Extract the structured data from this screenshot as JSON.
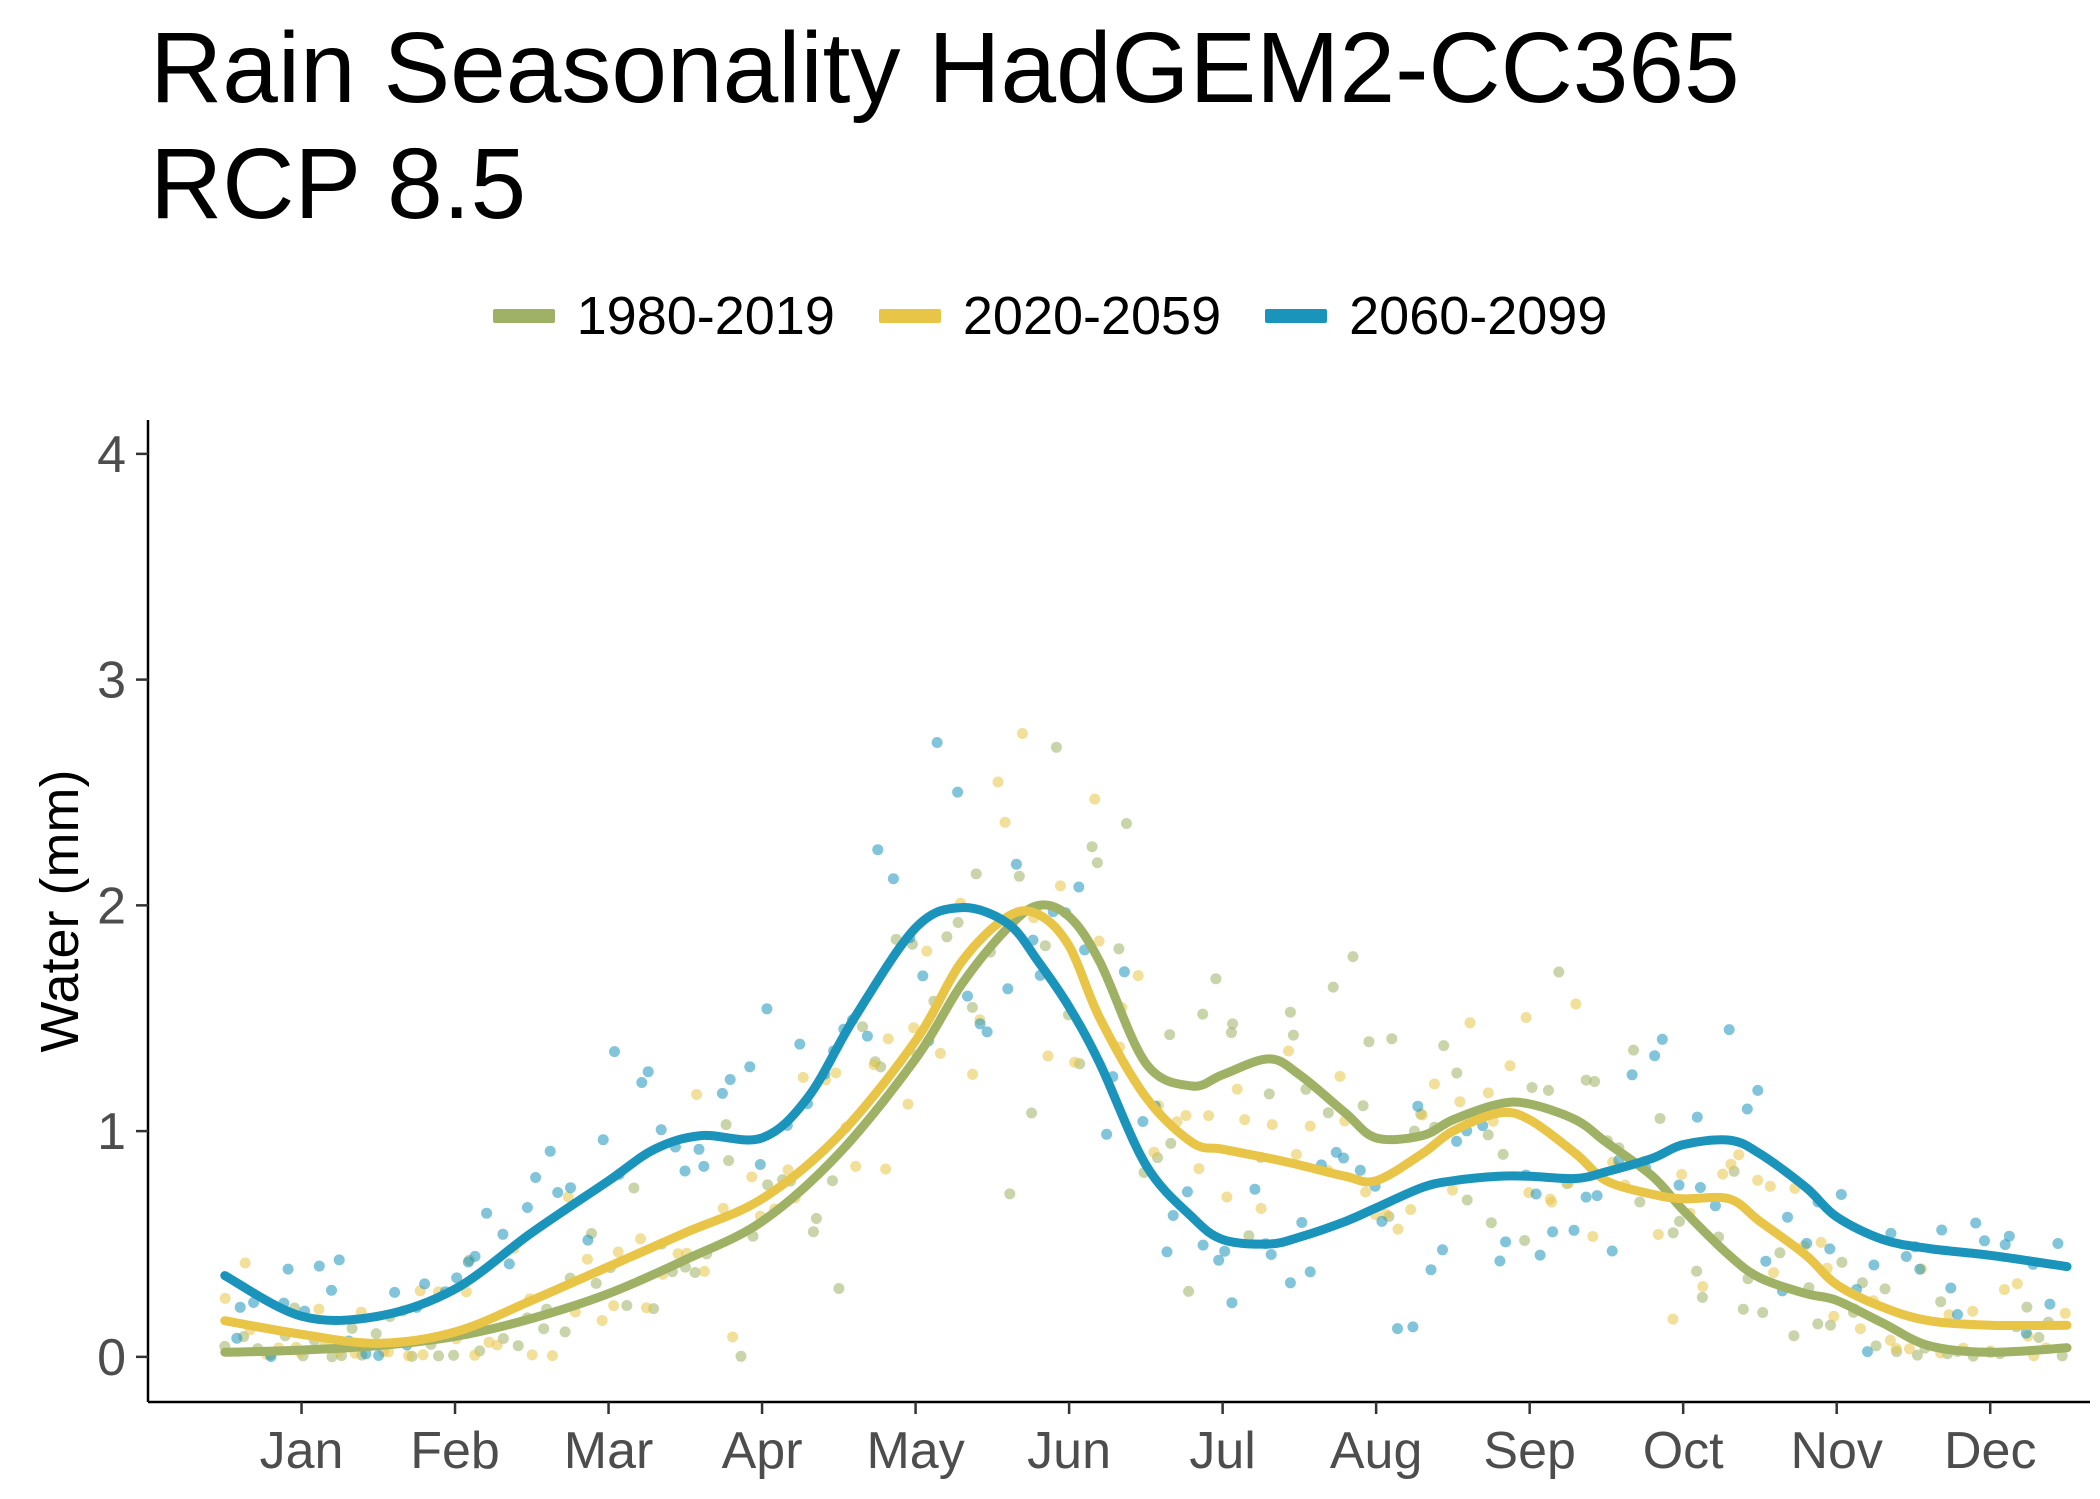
{
  "chart_data": {
    "type": "line",
    "title": [
      "Rain Seasonality HadGEM2-CC365",
      "RCP 8.5"
    ],
    "xlabel": "",
    "ylabel": "Water (mm)",
    "xlim": [
      0,
      12.65
    ],
    "ylim": [
      -0.2,
      4.15
    ],
    "x_ticks": [
      {
        "label": "Jan",
        "x": 1
      },
      {
        "label": "Feb",
        "x": 2
      },
      {
        "label": "Mar",
        "x": 3
      },
      {
        "label": "Apr",
        "x": 4
      },
      {
        "label": "May",
        "x": 5
      },
      {
        "label": "Jun",
        "x": 6
      },
      {
        "label": "Jul",
        "x": 7
      },
      {
        "label": "Aug",
        "x": 8
      },
      {
        "label": "Sep",
        "x": 9
      },
      {
        "label": "Oct",
        "x": 10
      },
      {
        "label": "Nov",
        "x": 11
      },
      {
        "label": "Dec",
        "x": 12
      }
    ],
    "y_ticks": [
      0,
      1,
      2,
      3,
      4
    ],
    "grid": false,
    "legend_position": "top-center",
    "series": [
      {
        "name": "1980-2019",
        "color": "#9fb164",
        "x": [
          0.5,
          1.0,
          1.5,
          2.0,
          2.5,
          3.0,
          3.5,
          4.0,
          4.5,
          5.0,
          5.3,
          5.6,
          5.8,
          6.0,
          6.2,
          6.5,
          6.8,
          7.0,
          7.3,
          7.5,
          7.8,
          8.0,
          8.3,
          8.5,
          8.8,
          9.0,
          9.3,
          9.5,
          9.8,
          10.0,
          10.3,
          10.5,
          10.8,
          11.0,
          11.3,
          11.6,
          12.0,
          12.5
        ],
        "y": [
          0.02,
          0.03,
          0.05,
          0.09,
          0.17,
          0.28,
          0.43,
          0.6,
          0.9,
          1.32,
          1.65,
          1.9,
          2.0,
          1.95,
          1.75,
          1.3,
          1.2,
          1.25,
          1.32,
          1.25,
          1.08,
          0.97,
          0.98,
          1.05,
          1.12,
          1.12,
          1.05,
          0.95,
          0.8,
          0.65,
          0.45,
          0.35,
          0.28,
          0.25,
          0.15,
          0.05,
          0.02,
          0.04
        ]
      },
      {
        "name": "2020-2059",
        "color": "#e8c547",
        "x": [
          0.5,
          1.0,
          1.5,
          2.0,
          2.5,
          3.0,
          3.5,
          4.0,
          4.5,
          5.0,
          5.3,
          5.6,
          5.8,
          6.0,
          6.2,
          6.5,
          6.8,
          7.0,
          7.3,
          7.5,
          7.8,
          8.0,
          8.3,
          8.5,
          8.8,
          9.0,
          9.3,
          9.5,
          9.8,
          10.0,
          10.3,
          10.5,
          10.8,
          11.0,
          11.3,
          11.6,
          12.0,
          12.5
        ],
        "y": [
          0.16,
          0.1,
          0.06,
          0.11,
          0.25,
          0.4,
          0.55,
          0.7,
          0.98,
          1.4,
          1.75,
          1.95,
          1.96,
          1.82,
          1.5,
          1.15,
          0.95,
          0.92,
          0.88,
          0.85,
          0.8,
          0.78,
          0.9,
          1.0,
          1.08,
          1.05,
          0.9,
          0.78,
          0.72,
          0.7,
          0.7,
          0.6,
          0.45,
          0.32,
          0.22,
          0.16,
          0.14,
          0.14
        ]
      },
      {
        "name": "2060-2099",
        "color": "#1b94bb",
        "x": [
          0.5,
          1.0,
          1.5,
          2.0,
          2.5,
          3.0,
          3.3,
          3.6,
          4.0,
          4.3,
          4.6,
          5.0,
          5.3,
          5.6,
          5.8,
          6.0,
          6.2,
          6.5,
          6.8,
          7.0,
          7.3,
          7.5,
          7.8,
          8.0,
          8.3,
          8.5,
          8.8,
          9.0,
          9.3,
          9.5,
          9.8,
          10.0,
          10.3,
          10.5,
          10.8,
          11.0,
          11.3,
          11.6,
          12.0,
          12.5
        ],
        "y": [
          0.36,
          0.18,
          0.18,
          0.3,
          0.55,
          0.78,
          0.92,
          0.98,
          0.97,
          1.15,
          1.5,
          1.9,
          1.99,
          1.92,
          1.75,
          1.55,
          1.3,
          0.85,
          0.62,
          0.52,
          0.5,
          0.53,
          0.6,
          0.66,
          0.75,
          0.78,
          0.8,
          0.8,
          0.79,
          0.82,
          0.88,
          0.94,
          0.96,
          0.9,
          0.75,
          0.62,
          0.52,
          0.48,
          0.45,
          0.4
        ]
      }
    ]
  }
}
